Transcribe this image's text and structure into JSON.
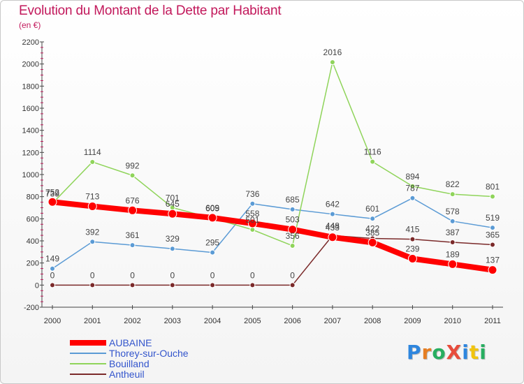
{
  "title": "Evolution du Montant de la Dette par Habitant",
  "subtitle": "(en €)",
  "logo": {
    "text": "ProXiti",
    "letters": [
      {
        "ch": "P",
        "color": "#2e86de"
      },
      {
        "ch": "r",
        "color": "#e67e22"
      },
      {
        "ch": "o",
        "color": "#27ae60"
      },
      {
        "ch": "X",
        "color": "#e74c3c"
      },
      {
        "ch": "i",
        "color": "#2e86de"
      },
      {
        "ch": "t",
        "color": "#f1c40f"
      },
      {
        "ch": "i",
        "color": "#27ae60"
      }
    ]
  },
  "chart_data": {
    "type": "line",
    "x": [
      "2000",
      "2001",
      "2002",
      "2003",
      "2004",
      "2005",
      "2006",
      "2007",
      "2008",
      "2009",
      "2010",
      "2011"
    ],
    "ylim": [
      -200,
      2200
    ],
    "yticks": [
      -200,
      0,
      200,
      400,
      600,
      800,
      1000,
      1200,
      1400,
      1600,
      1800,
      2000,
      2200
    ],
    "grid": false,
    "legend_position": "bottom-left",
    "series": [
      {
        "name": "AUBAINE",
        "color": "#ff0000",
        "values": [
          752,
          713,
          676,
          645,
          609,
          558,
          503,
          433,
          385,
          239,
          189,
          137
        ],
        "labels": [
          "752",
          "713",
          "676",
          "645",
          "609",
          "558",
          "503",
          "433",
          "385",
          "239",
          "189",
          "137"
        ]
      },
      {
        "name": "Thorey-sur-Ouche",
        "color": "#5b9bd5",
        "values": [
          149,
          392,
          361,
          329,
          295,
          736,
          685,
          642,
          601,
          787,
          578,
          519
        ],
        "labels": [
          "149",
          "392",
          "361",
          "329",
          "295",
          "736",
          "685",
          "642",
          "601",
          "787",
          "578",
          "519"
        ]
      },
      {
        "name": "Bouilland",
        "color": "#8fd45a",
        "values": [
          739,
          1114,
          992,
          701,
          605,
          501,
          356,
          2016,
          1116,
          894,
          822,
          801
        ],
        "labels": [
          "739",
          "1114",
          "992",
          "701",
          "605",
          "501",
          "356",
          "2016",
          "1116",
          "894",
          "822",
          "801"
        ]
      },
      {
        "name": "Antheuil",
        "color": "#7b2a2a",
        "values": [
          0,
          0,
          0,
          0,
          0,
          0,
          0,
          448,
          422,
          415,
          387,
          365
        ],
        "labels": [
          "0",
          "0",
          "0",
          "0",
          "0",
          "0",
          "0",
          "448",
          "422",
          "415",
          "387",
          "365"
        ]
      }
    ]
  }
}
